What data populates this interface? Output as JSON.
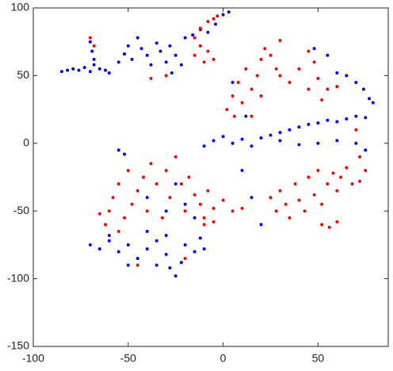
{
  "chart_data": {
    "type": "scatter",
    "xlim": [
      -100,
      87
    ],
    "ylim": [
      -150,
      100
    ],
    "xticks": [
      -100,
      -50,
      0,
      50
    ],
    "yticks": [
      -150,
      -100,
      -50,
      0,
      50,
      100
    ],
    "series": [
      {
        "color": "#0000ff",
        "x": [
          -85,
          -82,
          -79,
          -76,
          -73,
          -70,
          -68,
          -65,
          -62,
          -60,
          -70,
          -69,
          -68,
          -55,
          -52,
          -50,
          -48,
          -45,
          -43,
          -40,
          -38,
          -35,
          -33,
          -30,
          -28,
          -25,
          -22,
          -27,
          -20,
          -16,
          -12,
          -8,
          -4,
          0,
          3,
          -10,
          -5,
          0,
          5,
          10,
          15,
          20,
          25,
          30,
          35,
          40,
          45,
          50,
          55,
          60,
          65,
          70,
          75,
          30,
          40,
          50,
          60,
          70,
          75,
          65,
          70,
          74,
          77,
          79,
          60,
          55,
          48,
          -55,
          -52,
          5,
          12,
          -70,
          -65,
          -60,
          -55,
          -50,
          -45,
          -40,
          -35,
          -30,
          -28,
          -25,
          -22,
          -20,
          -15,
          -12,
          -10,
          -40,
          -30,
          -50,
          -60,
          -35,
          -40,
          -30,
          -20,
          -15,
          -25,
          15,
          20,
          10
        ],
        "values": [
          53,
          54,
          55,
          54,
          56,
          53,
          58,
          55,
          54,
          52,
          75,
          68,
          62,
          60,
          66,
          72,
          62,
          78,
          70,
          65,
          58,
          74,
          68,
          60,
          72,
          65,
          58,
          52,
          78,
          80,
          84,
          82,
          88,
          95,
          97,
          -2,
          2,
          5,
          0,
          3,
          -2,
          4,
          6,
          8,
          10,
          12,
          14,
          15,
          17,
          16,
          18,
          20,
          19,
          2,
          -1,
          0,
          2,
          0,
          -5,
          50,
          45,
          40,
          33,
          30,
          52,
          65,
          70,
          -5,
          -8,
          45,
          20,
          -75,
          -78,
          -72,
          -80,
          -75,
          -85,
          -78,
          -72,
          -82,
          -92,
          -98,
          -88,
          -75,
          -80,
          -70,
          -78,
          -65,
          -68,
          -90,
          -68,
          -90,
          -40,
          -50,
          -45,
          -55,
          -30,
          -40,
          -60,
          -20
        ]
      },
      {
        "color": "#ff0000",
        "x": [
          -15,
          -12,
          -10,
          -8,
          -5,
          -12,
          -8,
          -5,
          -3,
          -15,
          -70,
          -68,
          -38,
          -30,
          5,
          8,
          10,
          12,
          15,
          18,
          20,
          22,
          25,
          28,
          2,
          6,
          15,
          20,
          30,
          35,
          40,
          45,
          50,
          55,
          60,
          45,
          48,
          30,
          52,
          70,
          72,
          75,
          -60,
          -58,
          -55,
          -52,
          -50,
          -48,
          -45,
          -42,
          -40,
          -38,
          -35,
          -32,
          -30,
          -28,
          -25,
          -22,
          -20,
          -18,
          -15,
          -12,
          -10,
          -8,
          -5,
          0,
          5,
          10,
          -62,
          -65,
          -55,
          -10,
          -5,
          25,
          28,
          30,
          33,
          35,
          38,
          40,
          43,
          45,
          48,
          50,
          52,
          55,
          58,
          60,
          62,
          65,
          68,
          72,
          52,
          56,
          60,
          -20,
          -45
        ],
        "values": [
          65,
          72,
          60,
          68,
          62,
          85,
          90,
          92,
          94,
          78,
          78,
          72,
          48,
          50,
          35,
          45,
          30,
          55,
          40,
          50,
          62,
          70,
          65,
          55,
          25,
          20,
          20,
          35,
          50,
          45,
          55,
          40,
          48,
          40,
          42,
          68,
          60,
          76,
          32,
          10,
          -10,
          -20,
          -50,
          -40,
          -30,
          -55,
          -20,
          -45,
          -35,
          -25,
          -50,
          -15,
          -30,
          -55,
          -20,
          -40,
          -10,
          -30,
          -50,
          -25,
          -38,
          -45,
          -55,
          -35,
          -48,
          -42,
          -50,
          -48,
          -60,
          -52,
          -65,
          -60,
          -58,
          -40,
          -50,
          -35,
          -45,
          -55,
          -30,
          -42,
          -50,
          -25,
          -38,
          -20,
          -45,
          -30,
          -22,
          -35,
          -25,
          -18,
          -30,
          -28,
          -60,
          -62,
          -58,
          -85,
          -90
        ]
      }
    ]
  }
}
